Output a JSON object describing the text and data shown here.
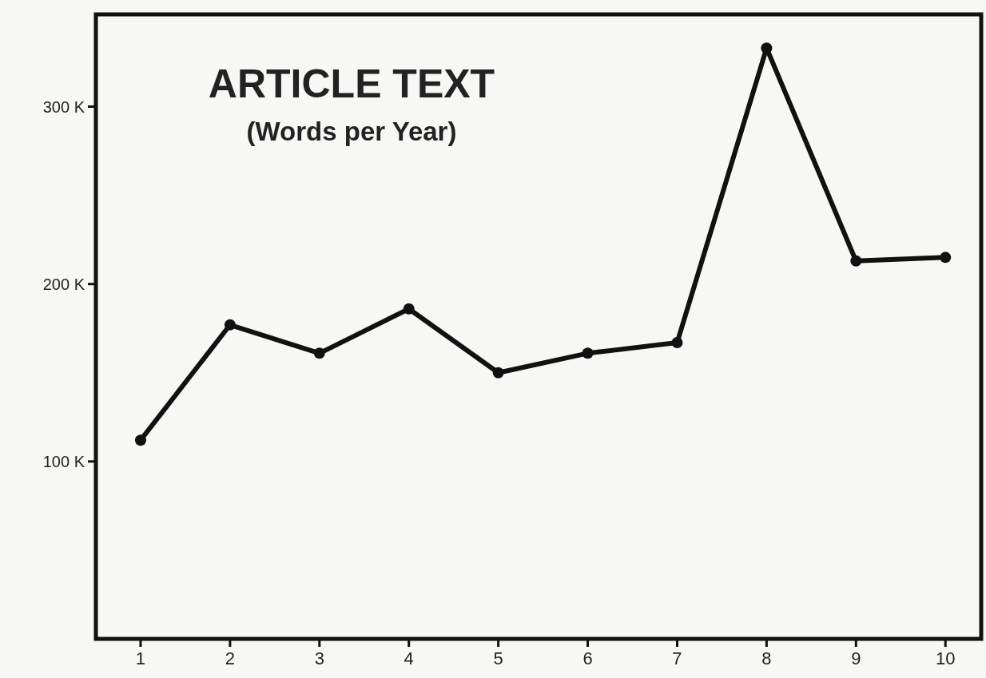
{
  "chart_data": {
    "type": "line",
    "title": "ARTICLE TEXT",
    "subtitle": "(Words per Year)",
    "x": [
      1,
      2,
      3,
      4,
      5,
      6,
      7,
      8,
      9,
      10
    ],
    "values": [
      112,
      177,
      161,
      186,
      150,
      161,
      167,
      333,
      213,
      215
    ],
    "color": "#111111",
    "xlim": [
      0.5,
      10.4
    ],
    "xticks": [
      1,
      2,
      3,
      4,
      5,
      6,
      7,
      8,
      9,
      10
    ],
    "ylim": [
      0,
      352
    ],
    "yticks": [
      {
        "value": 100,
        "label": "100 K"
      },
      {
        "value": 200,
        "label": "200 K"
      },
      {
        "value": 300,
        "label": "300 K"
      }
    ],
    "marker": "circle",
    "line_style": "solid",
    "grid": false
  }
}
